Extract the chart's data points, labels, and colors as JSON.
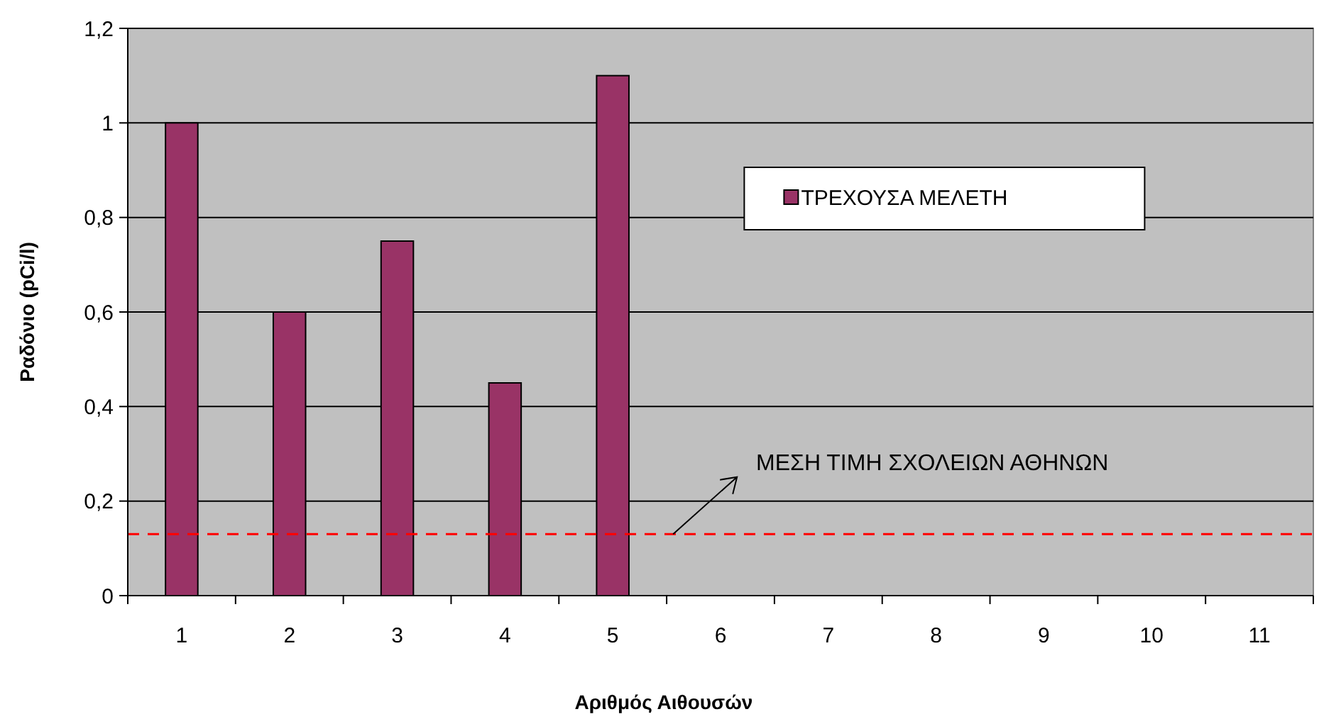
{
  "chart_data": {
    "type": "bar",
    "xlabel": "Αριθμός Αιθουσών",
    "ylabel": "Ραδόνιο (pCi/l)",
    "categories": [
      "1",
      "2",
      "3",
      "4",
      "5",
      "6",
      "7",
      "8",
      "9",
      "10",
      "11"
    ],
    "series": [
      {
        "name": "ΤΡΕΧΟΥΣΑ ΜΕΛΕΤΗ",
        "color": "#993366",
        "values": [
          1,
          0.6,
          0.75,
          0.45,
          1.1,
          null,
          null,
          null,
          null,
          null,
          null
        ]
      }
    ],
    "ylim": [
      0,
      1.2
    ],
    "yticks": [
      0,
      {
        "value": 0.2,
        "label": "0,2"
      },
      {
        "value": 0.4,
        "label": "0,4"
      },
      {
        "value": 0.6,
        "label": "0,6"
      },
      {
        "value": 0.8,
        "label": "0,8"
      },
      1,
      {
        "value": 1.2,
        "label": "1,2"
      }
    ],
    "grid": "y",
    "legend": "top right",
    "ref_lines": [
      {
        "axis": "y",
        "value": 0.13,
        "label": "ΜΕΣΗ ΤΙΜΗ ΣΧΟΛΕΙΩΝ ΑΘΗΝΩΝ",
        "color": "#ff0000",
        "line_style": "dashed"
      }
    ]
  }
}
